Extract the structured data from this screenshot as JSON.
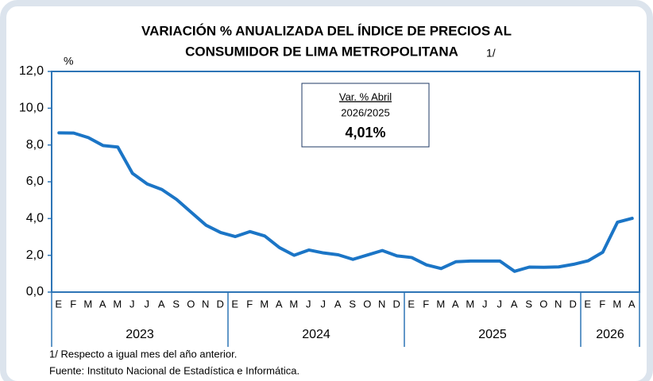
{
  "chart_data": {
    "type": "line",
    "title_lines": [
      "VARIACIÓN % ANUALIZADA DEL ÍNDICE DE PRECIOS AL",
      "CONSUMIDOR DE LIMA METROPOLITANA"
    ],
    "title_note": "1/",
    "y_label": "%",
    "categories": [
      "E",
      "F",
      "M",
      "A",
      "M",
      "J",
      "J",
      "A",
      "S",
      "O",
      "N",
      "D",
      "E",
      "F",
      "M",
      "A",
      "M",
      "J",
      "J",
      "A",
      "S",
      "O",
      "N",
      "D",
      "E",
      "F",
      "M",
      "A",
      "M",
      "J",
      "J",
      "A",
      "S",
      "O",
      "N",
      "D",
      "E",
      "F",
      "M",
      "A"
    ],
    "years": [
      "2023",
      "2024",
      "2025",
      "2026"
    ],
    "values": [
      8.66,
      8.65,
      8.4,
      7.97,
      7.89,
      6.46,
      5.88,
      5.58,
      5.04,
      4.34,
      3.64,
      3.24,
      3.02,
      3.29,
      3.05,
      2.42,
      2.0,
      2.29,
      2.13,
      2.03,
      1.78,
      2.02,
      2.26,
      1.97,
      1.88,
      1.48,
      1.28,
      1.65,
      1.69,
      1.69,
      1.69,
      1.13,
      1.36,
      1.35,
      1.37,
      1.51,
      1.7,
      2.17,
      3.8,
      4.01
    ],
    "color": "#1b75c6",
    "ylim": [
      0,
      12
    ],
    "yticks": [
      {
        "value": 0,
        "label": "0,0"
      },
      {
        "value": 2,
        "label": "2,0"
      },
      {
        "value": 4,
        "label": "4,0"
      },
      {
        "value": 6,
        "label": "6,0"
      },
      {
        "value": 8,
        "label": "8,0"
      },
      {
        "value": 10,
        "label": "10,0"
      },
      {
        "value": 12,
        "label": "12,0"
      }
    ],
    "annotation": [
      "Var. % Abril",
      "2026/2025",
      "4,01%"
    ],
    "footnotes": [
      "1/ Respecto a igual mes del año anterior.",
      "Fuente: Instituto Nacional de Estadística e Informática."
    ]
  }
}
